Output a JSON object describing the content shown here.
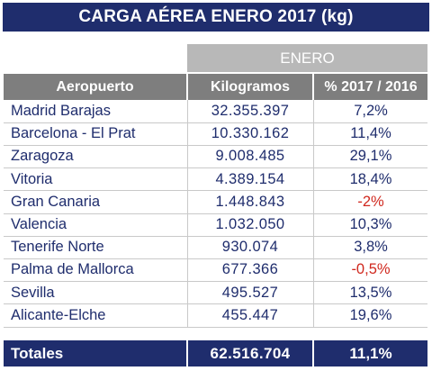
{
  "title": "CARGA AÉREA ENERO 2017 (kg)",
  "period_header": "ENERO",
  "colors": {
    "navy": "#1f2d6d",
    "header_gray": "#7e7e7e",
    "period_gray": "#b8b8b8",
    "negative_red": "#d0281e"
  },
  "chart_data": {
    "type": "table",
    "title": "CARGA AÉREA ENERO 2017 (kg)",
    "columns": [
      "Aeropuerto",
      "Kilogramos",
      "% 2017 / 2016"
    ],
    "rows": [
      {
        "aeropuerto": "Madrid Barajas",
        "kilogramos": "32.355.397",
        "variacion": "7,2%",
        "value_kg": 32355397,
        "pct": 7.2
      },
      {
        "aeropuerto": "Barcelona - El Prat",
        "kilogramos": "10.330.162",
        "variacion": "11,4%",
        "value_kg": 10330162,
        "pct": 11.4
      },
      {
        "aeropuerto": "Zaragoza",
        "kilogramos": "9.008.485",
        "variacion": "29,1%",
        "value_kg": 9008485,
        "pct": 29.1
      },
      {
        "aeropuerto": "Vitoria",
        "kilogramos": "4.389.154",
        "variacion": "18,4%",
        "value_kg": 4389154,
        "pct": 18.4
      },
      {
        "aeropuerto": "Gran Canaria",
        "kilogramos": "1.448.843",
        "variacion": "-2%",
        "value_kg": 1448843,
        "pct": -2
      },
      {
        "aeropuerto": "Valencia",
        "kilogramos": "1.032.050",
        "variacion": "10,3%",
        "value_kg": 1032050,
        "pct": 10.3
      },
      {
        "aeropuerto": "Tenerife Norte",
        "kilogramos": "930.074",
        "variacion": "3,8%",
        "value_kg": 930074,
        "pct": 3.8
      },
      {
        "aeropuerto": "Palma de Mallorca",
        "kilogramos": "677.366",
        "variacion": "-0,5%",
        "value_kg": 677366,
        "pct": -0.5
      },
      {
        "aeropuerto": "Sevilla",
        "kilogramos": "495.527",
        "variacion": "13,5%",
        "value_kg": 495527,
        "pct": 13.5
      },
      {
        "aeropuerto": "Alicante-Elche",
        "kilogramos": "455.447",
        "variacion": "19,6%",
        "value_kg": 455447,
        "pct": 19.6
      }
    ],
    "totals": {
      "label": "Totales",
      "kilogramos": "62.516.704",
      "variacion": "11,1%",
      "value_kg": 62516704,
      "pct": 11.1
    }
  }
}
